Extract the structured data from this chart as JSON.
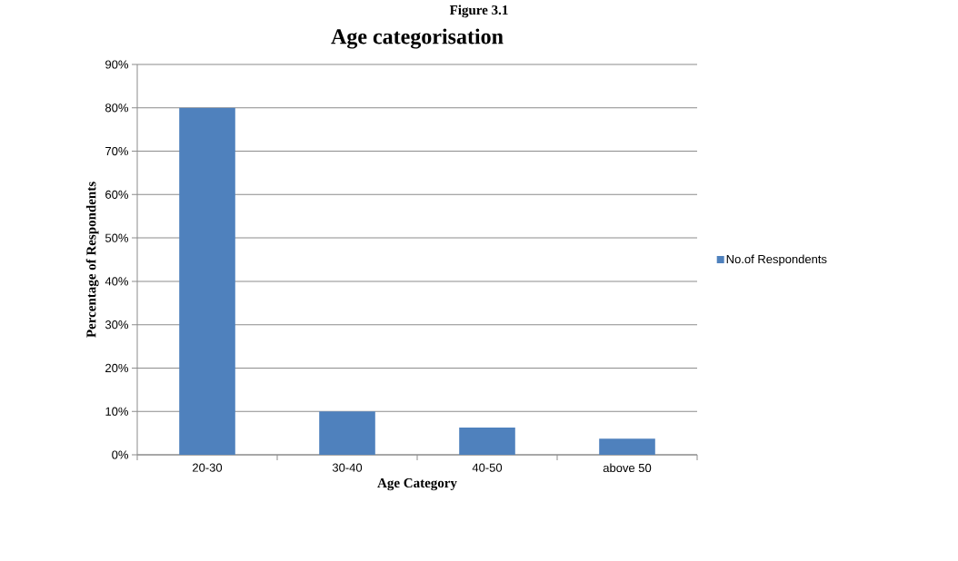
{
  "chart_data": {
    "type": "bar",
    "title": "Age categorisation",
    "xlabel": "Age Category",
    "ylabel": "Percentage of Respondents",
    "annotations": [
      "Figure 3.1"
    ],
    "categories": [
      "20-30",
      "30-40",
      "40-50",
      "above 50"
    ],
    "series": [
      {
        "name": "No.of Respondents",
        "color": "#4f81bd",
        "values": [
          80,
          10,
          6.3,
          3.7
        ]
      }
    ],
    "ylim": [
      0,
      90
    ],
    "yticks": [
      {
        "value": 0,
        "label": "0%"
      },
      {
        "value": 10,
        "label": "10%"
      },
      {
        "value": 20,
        "label": "20%"
      },
      {
        "value": 30,
        "label": "30%"
      },
      {
        "value": 40,
        "label": "40%"
      },
      {
        "value": 50,
        "label": "50%"
      },
      {
        "value": 60,
        "label": "60%"
      },
      {
        "value": 70,
        "label": "70%"
      },
      {
        "value": 80,
        "label": "80%"
      },
      {
        "value": 90,
        "label": "90%"
      }
    ],
    "grid": "y",
    "legend": "right"
  }
}
